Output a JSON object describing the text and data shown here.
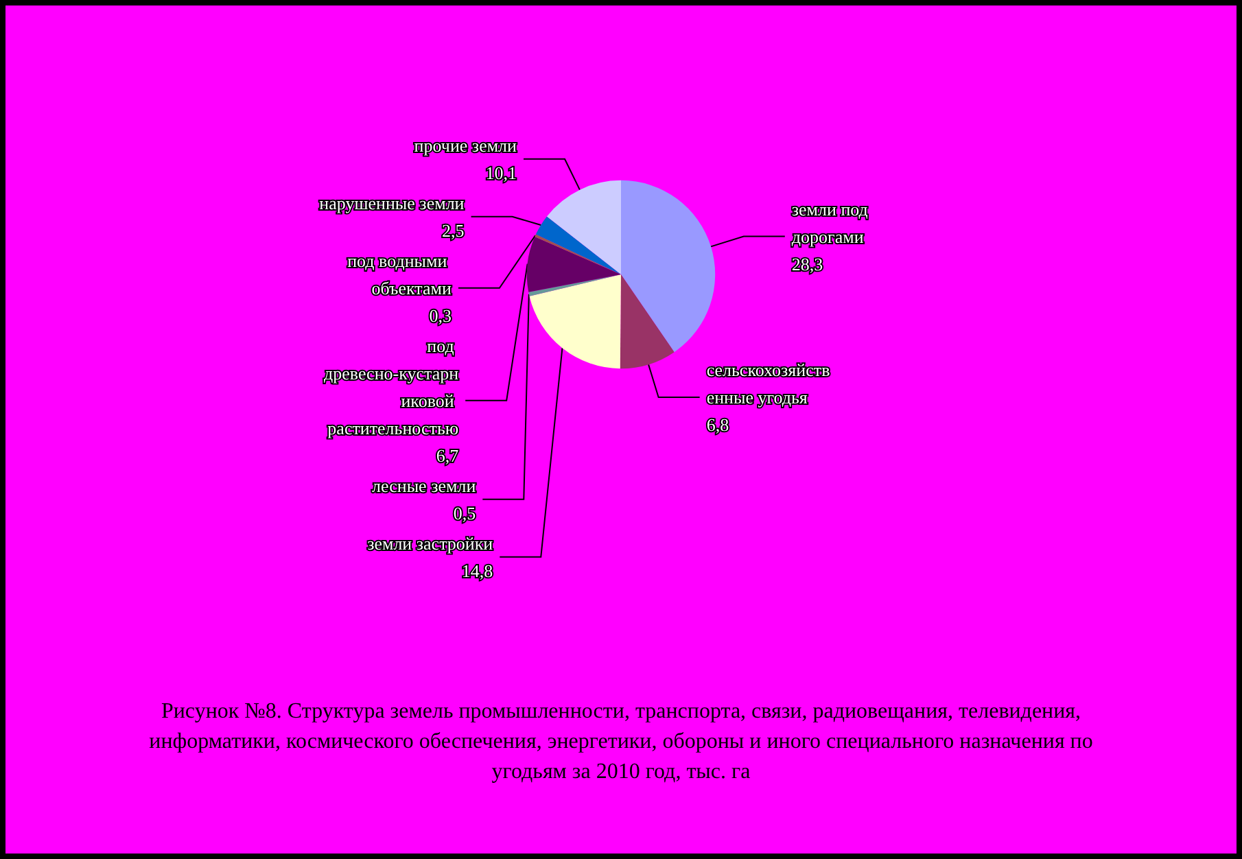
{
  "chart_data": {
    "type": "pie",
    "title": "Рисунок №8. Структура земель промышленности, транспорта, связи, радиовещания, телевидения, информатики, космического обеспечения, энергетики, обороны и иного специального назначения по угодьям за 2010 год, тыс. га",
    "categories": [
      "земли под дорогами",
      "сельскохозяйственные угодья",
      "земли застройки",
      "лесные земли",
      "под древесно-кустарниковой растительностью",
      "под водными объектами",
      "нарушенные земли",
      "прочие земли"
    ],
    "values": [
      28.3,
      6.8,
      14.8,
      0.5,
      6.7,
      0.3,
      2.5,
      10.1
    ],
    "value_labels": [
      "28,3",
      "6,8",
      "14,8",
      "0,5",
      "6,7",
      "0,3",
      "2,5",
      "10,1"
    ],
    "colors": [
      "#9999ff",
      "#993366",
      "#ffffcc",
      "#669999",
      "#660066",
      "#a0524d",
      "#0066cc",
      "#ccccff"
    ]
  }
}
